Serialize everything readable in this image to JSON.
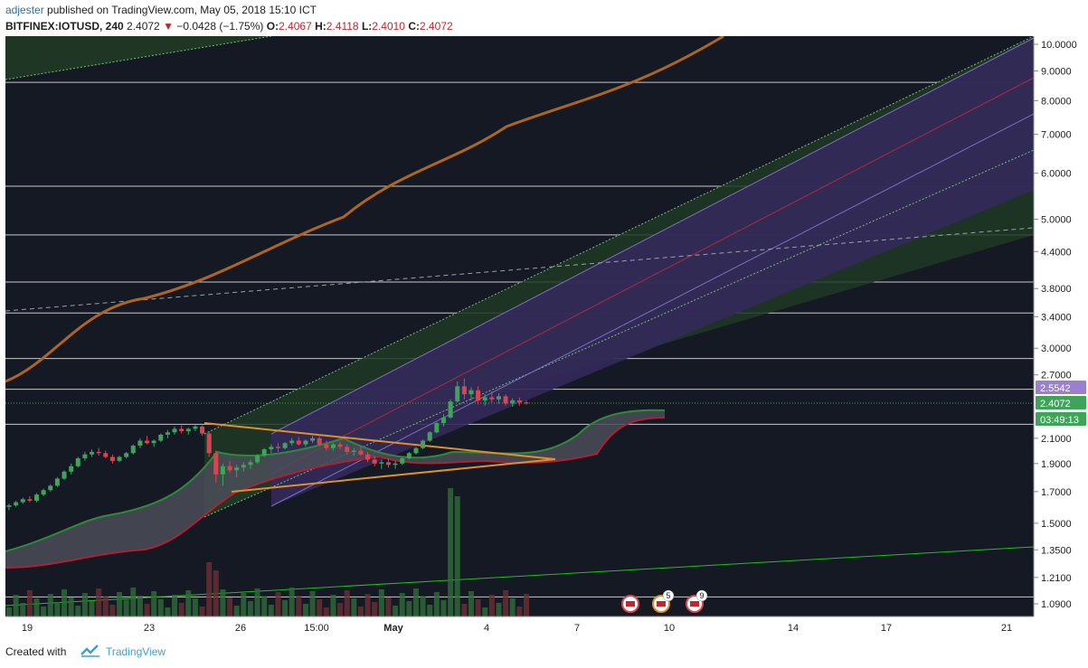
{
  "header": {
    "user": "adjester",
    "published_text": "published on TradingView.com, May 05, 2018 15:10 ICT",
    "symbol": "BITFINEX:IOTUSD, 240",
    "last": "2.4072",
    "change": "−0.0428 (−1.75%)",
    "o_label": "O:",
    "o_value": "2.4067",
    "h_label": "H:",
    "h_value": "2.4118",
    "l_label": "L:",
    "l_value": "2.4010",
    "c_label": "C:",
    "c_value": "2.4072"
  },
  "footer": {
    "created_with": "Created with",
    "brand": "TradingView"
  },
  "colors": {
    "background": "#151924",
    "grid_line": "#c8c8c8",
    "up": "#3fa35a",
    "down": "#d9454f",
    "ma_long": "#b0651f",
    "channel_outer": "#2c4a2c",
    "channel_inner": "#3b2f63",
    "trend_green": "#20c020"
  },
  "chart_data": {
    "type": "candlestick",
    "scale": "log",
    "y_axis_labels": [
      "10.0000",
      "9.0000",
      "8.0000",
      "7.0000",
      "6.0000",
      "5.0000",
      "4.4000",
      "3.8000",
      "3.4000",
      "3.0000",
      "2.7000",
      "2.1000",
      "1.9000",
      "1.7000",
      "1.5000",
      "1.3500",
      "1.2100",
      "1.0900"
    ],
    "price_badges": [
      {
        "label": "2.5542",
        "color": "#9b7fd0"
      },
      {
        "label": "2.4072",
        "color": "#3fa35a"
      },
      {
        "label": "03:49:13",
        "color": "#3fa35a"
      }
    ],
    "x_axis_labels": [
      "19",
      "23",
      "26",
      "15:00",
      "May",
      "4",
      "7",
      "10",
      "14",
      "17",
      "21"
    ],
    "horizontal_levels": [
      8.6,
      5.7,
      4.7,
      3.9,
      3.45,
      2.88,
      2.55,
      2.22
    ],
    "candles": [
      [
        1.6,
        1.62,
        1.58,
        1.61
      ],
      [
        1.61,
        1.64,
        1.6,
        1.63
      ],
      [
        1.63,
        1.66,
        1.62,
        1.65
      ],
      [
        1.65,
        1.67,
        1.63,
        1.64
      ],
      [
        1.64,
        1.69,
        1.63,
        1.68
      ],
      [
        1.68,
        1.72,
        1.67,
        1.71
      ],
      [
        1.71,
        1.75,
        1.7,
        1.74
      ],
      [
        1.74,
        1.8,
        1.73,
        1.79
      ],
      [
        1.79,
        1.85,
        1.78,
        1.84
      ],
      [
        1.84,
        1.9,
        1.82,
        1.88
      ],
      [
        1.88,
        1.95,
        1.87,
        1.94
      ],
      [
        1.94,
        1.99,
        1.92,
        1.97
      ],
      [
        1.97,
        2.01,
        1.95,
        1.99
      ],
      [
        1.99,
        2.02,
        1.96,
        1.98
      ],
      [
        1.98,
        2.0,
        1.94,
        1.95
      ],
      [
        1.95,
        1.97,
        1.9,
        1.92
      ],
      [
        1.92,
        1.96,
        1.91,
        1.95
      ],
      [
        1.95,
        1.99,
        1.94,
        1.98
      ],
      [
        1.98,
        2.05,
        1.97,
        2.04
      ],
      [
        2.04,
        2.1,
        2.02,
        2.08
      ],
      [
        2.08,
        2.12,
        2.05,
        2.06
      ],
      [
        2.06,
        2.09,
        2.03,
        2.08
      ],
      [
        2.08,
        2.14,
        2.07,
        2.13
      ],
      [
        2.13,
        2.17,
        2.1,
        2.15
      ],
      [
        2.15,
        2.2,
        2.13,
        2.18
      ],
      [
        2.18,
        2.21,
        2.14,
        2.16
      ],
      [
        2.16,
        2.19,
        2.13,
        2.18
      ],
      [
        2.18,
        2.22,
        2.16,
        2.2
      ],
      [
        2.2,
        2.21,
        2.12,
        2.14
      ],
      [
        2.14,
        2.16,
        1.95,
        1.98
      ],
      [
        1.98,
        2.0,
        1.76,
        1.82
      ],
      [
        1.82,
        1.9,
        1.74,
        1.88
      ],
      [
        1.88,
        1.92,
        1.83,
        1.85
      ],
      [
        1.85,
        1.89,
        1.8,
        1.87
      ],
      [
        1.87,
        1.91,
        1.84,
        1.89
      ],
      [
        1.89,
        1.93,
        1.86,
        1.91
      ],
      [
        1.91,
        1.97,
        1.9,
        1.96
      ],
      [
        1.96,
        2.02,
        1.95,
        2.01
      ],
      [
        2.01,
        2.05,
        1.98,
        2.03
      ],
      [
        2.03,
        2.06,
        1.99,
        2.02
      ],
      [
        2.02,
        2.07,
        2.01,
        2.06
      ],
      [
        2.06,
        2.1,
        2.04,
        2.08
      ],
      [
        2.08,
        2.11,
        2.04,
        2.05
      ],
      [
        2.05,
        2.09,
        2.03,
        2.08
      ],
      [
        2.08,
        2.12,
        2.06,
        2.1
      ],
      [
        2.1,
        2.13,
        2.04,
        2.05
      ],
      [
        2.05,
        2.08,
        2.0,
        2.02
      ],
      [
        2.02,
        2.06,
        2.0,
        2.05
      ],
      [
        2.05,
        2.07,
        2.01,
        2.03
      ],
      [
        2.03,
        2.05,
        1.97,
        1.99
      ],
      [
        1.99,
        2.02,
        1.96,
        2.0
      ],
      [
        2.0,
        2.03,
        1.96,
        1.97
      ],
      [
        1.97,
        1.99,
        1.91,
        1.93
      ],
      [
        1.93,
        1.96,
        1.88,
        1.9
      ],
      [
        1.9,
        1.93,
        1.86,
        1.91
      ],
      [
        1.91,
        1.94,
        1.87,
        1.89
      ],
      [
        1.89,
        1.92,
        1.86,
        1.9
      ],
      [
        1.9,
        1.95,
        1.89,
        1.94
      ],
      [
        1.94,
        1.99,
        1.93,
        1.98
      ],
      [
        1.98,
        2.03,
        1.97,
        2.02
      ],
      [
        2.02,
        2.09,
        2.01,
        2.08
      ],
      [
        2.08,
        2.16,
        2.07,
        2.15
      ],
      [
        2.15,
        2.24,
        2.14,
        2.23
      ],
      [
        2.23,
        2.31,
        2.2,
        2.28
      ],
      [
        2.28,
        2.45,
        2.27,
        2.43
      ],
      [
        2.43,
        2.63,
        2.42,
        2.58
      ],
      [
        2.58,
        2.66,
        2.45,
        2.5
      ],
      [
        2.5,
        2.57,
        2.44,
        2.54
      ],
      [
        2.54,
        2.58,
        2.4,
        2.44
      ],
      [
        2.44,
        2.5,
        2.39,
        2.47
      ],
      [
        2.47,
        2.53,
        2.42,
        2.45
      ],
      [
        2.45,
        2.51,
        2.41,
        2.48
      ],
      [
        2.48,
        2.5,
        2.39,
        2.41
      ],
      [
        2.41,
        2.46,
        2.38,
        2.44
      ],
      [
        2.44,
        2.47,
        2.39,
        2.42
      ],
      [
        2.42,
        2.44,
        2.4,
        2.41
      ]
    ],
    "events": [
      {
        "label": ""
      },
      {
        "label": "5"
      },
      {
        "label": "9"
      }
    ]
  }
}
